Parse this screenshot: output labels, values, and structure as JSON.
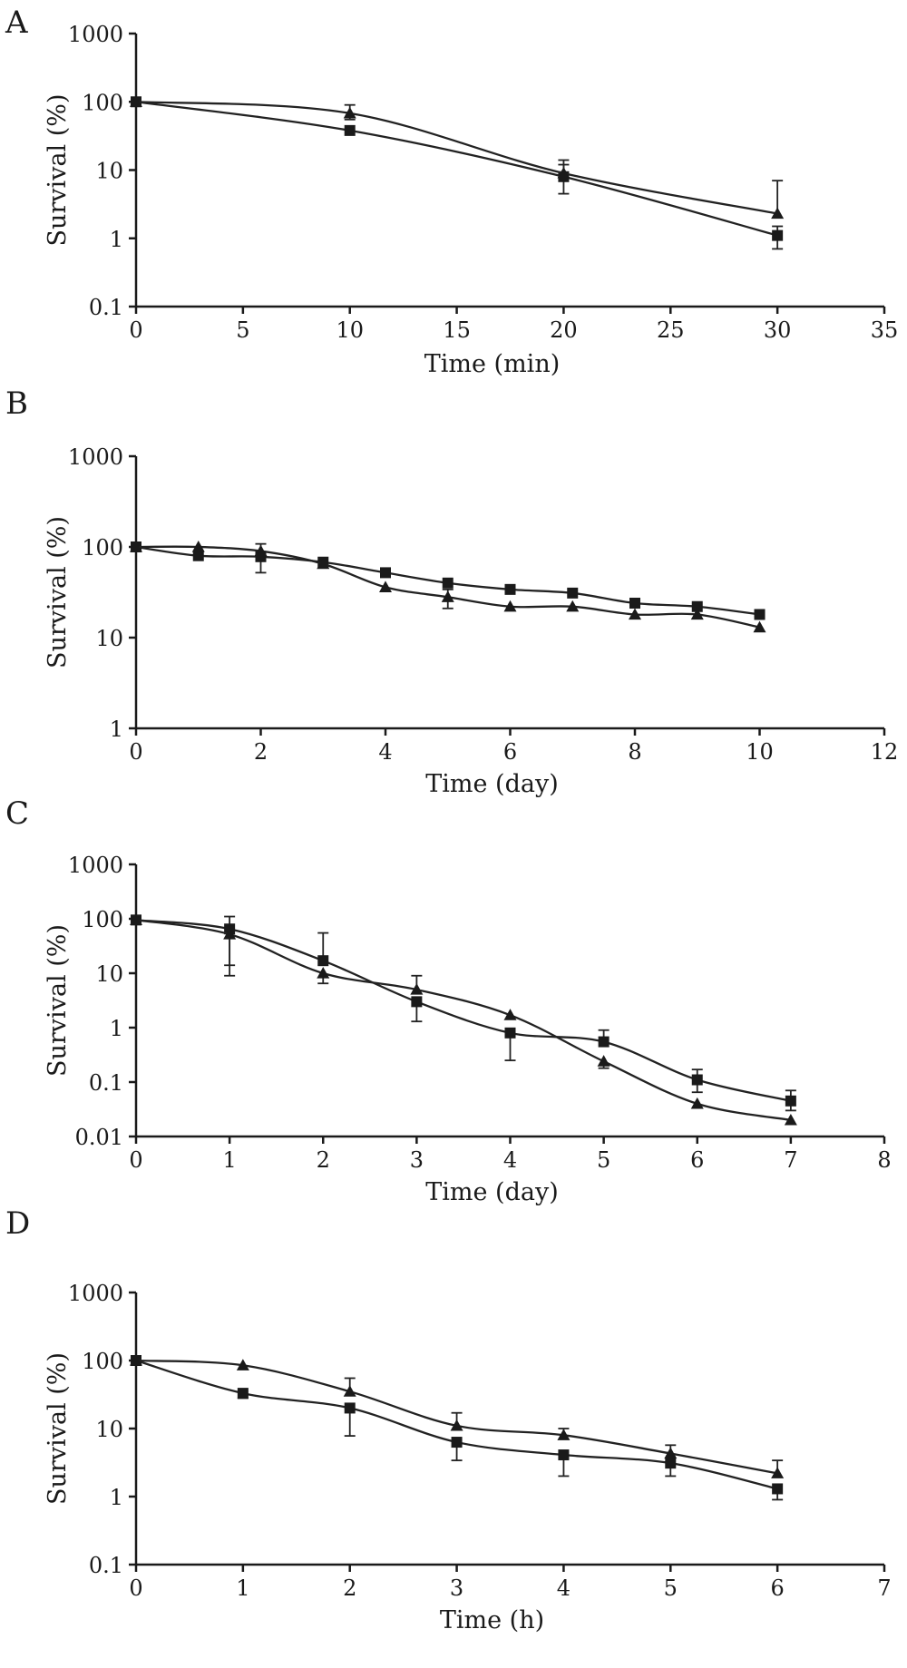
{
  "chart_data": [
    {
      "type": "line",
      "panel_label": "A",
      "title": "",
      "xlabel": "Time (min)",
      "ylabel": "Survival (%)",
      "y_scale": "log",
      "xlim": [
        0,
        35
      ],
      "ylim": [
        0.1,
        1000
      ],
      "x_ticks": [
        "0",
        "5",
        "10",
        "15",
        "20",
        "25",
        "30",
        "35"
      ],
      "y_ticks": [
        "0.1",
        "1",
        "10",
        "100",
        "1000"
      ],
      "grid": false,
      "legend": "none",
      "series": [
        {
          "marker": "square",
          "x": [
            0,
            10,
            20,
            30
          ],
          "values": [
            100,
            38,
            8,
            1.1
          ],
          "err_low": [
            null,
            null,
            4.5,
            0.7
          ],
          "err_high": [
            null,
            null,
            12,
            1.5
          ]
        },
        {
          "marker": "triangle",
          "x": [
            0,
            10,
            20,
            30
          ],
          "values": [
            100,
            68,
            9,
            2.3
          ],
          "err_low": [
            null,
            55,
            null,
            null
          ],
          "err_high": [
            null,
            90,
            14,
            7
          ]
        }
      ]
    },
    {
      "type": "line",
      "panel_label": "B",
      "title": "",
      "xlabel": "Time (day)",
      "ylabel": "Survival (%)",
      "y_scale": "log",
      "xlim": [
        0,
        12
      ],
      "ylim": [
        1,
        1000
      ],
      "x_ticks": [
        "0",
        "2",
        "4",
        "6",
        "8",
        "10",
        "12"
      ],
      "y_ticks": [
        "1",
        "10",
        "100",
        "1000"
      ],
      "grid": false,
      "legend": "none",
      "series": [
        {
          "marker": "square",
          "x": [
            0,
            1,
            2,
            3,
            4,
            5,
            6,
            7,
            8,
            9,
            10
          ],
          "values": [
            100,
            80,
            78,
            68,
            52,
            40,
            34,
            31,
            24,
            22,
            18
          ],
          "err_low": [
            null,
            null,
            52,
            null,
            null,
            null,
            null,
            null,
            null,
            null,
            null
          ],
          "err_high": [
            null,
            null,
            108,
            null,
            null,
            null,
            null,
            null,
            null,
            null,
            null
          ]
        },
        {
          "marker": "triangle",
          "x": [
            0,
            1,
            2,
            3,
            4,
            5,
            6,
            7,
            8,
            9,
            10
          ],
          "values": [
            100,
            100,
            90,
            65,
            36,
            28,
            22,
            22,
            18,
            18,
            13
          ],
          "err_low": [
            null,
            null,
            null,
            null,
            null,
            21,
            null,
            null,
            null,
            null,
            null
          ],
          "err_high": [
            null,
            null,
            null,
            null,
            null,
            34,
            null,
            null,
            null,
            null,
            null
          ]
        }
      ]
    },
    {
      "type": "line",
      "panel_label": "C",
      "title": "",
      "xlabel": "Time (day)",
      "ylabel": "Survival (%)",
      "y_scale": "log",
      "xlim": [
        0,
        8
      ],
      "ylim": [
        0.01,
        1000
      ],
      "x_ticks": [
        "0",
        "1",
        "2",
        "3",
        "4",
        "5",
        "6",
        "7",
        "8"
      ],
      "y_ticks": [
        "0.01",
        "0.1",
        "1",
        "10",
        "100",
        "1000"
      ],
      "grid": false,
      "legend": "none",
      "series": [
        {
          "marker": "square",
          "x": [
            0,
            1,
            2,
            3,
            4,
            5,
            6,
            7
          ],
          "values": [
            95,
            65,
            17,
            3,
            0.8,
            0.55,
            0.11,
            0.045
          ],
          "err_low": [
            null,
            14,
            null,
            1.3,
            0.25,
            null,
            0.065,
            0.03
          ],
          "err_high": [
            null,
            110,
            55,
            null,
            null,
            0.9,
            0.17,
            0.07
          ]
        },
        {
          "marker": "triangle",
          "x": [
            0,
            1,
            2,
            3,
            4,
            5,
            6,
            7
          ],
          "values": [
            95,
            52,
            10,
            5,
            1.7,
            0.24,
            0.04,
            0.02
          ],
          "err_low": [
            null,
            9,
            6.5,
            null,
            null,
            0.18,
            null,
            null
          ],
          "err_high": [
            null,
            null,
            null,
            9,
            null,
            null,
            null,
            null
          ]
        }
      ]
    },
    {
      "type": "line",
      "panel_label": "D",
      "title": "",
      "xlabel": "Time (h)",
      "ylabel": "Survival (%)",
      "y_scale": "log",
      "xlim": [
        0,
        7
      ],
      "ylim": [
        0.1,
        1000
      ],
      "x_ticks": [
        "0",
        "1",
        "2",
        "3",
        "4",
        "5",
        "6",
        "7"
      ],
      "y_ticks": [
        "0.1",
        "1",
        "10",
        "100",
        "1000"
      ],
      "grid": false,
      "legend": "none",
      "series": [
        {
          "marker": "square",
          "x": [
            0,
            1,
            2,
            3,
            4,
            5,
            6
          ],
          "values": [
            100,
            33,
            20,
            6.3,
            4.1,
            3.1,
            1.3
          ],
          "err_low": [
            null,
            28,
            7.8,
            3.4,
            2,
            2,
            0.9
          ],
          "err_high": [
            null,
            null,
            null,
            null,
            null,
            null,
            null
          ]
        },
        {
          "marker": "triangle",
          "x": [
            0,
            1,
            2,
            3,
            4,
            5,
            6
          ],
          "values": [
            100,
            85,
            35,
            11,
            8,
            4.3,
            2.2
          ],
          "err_low": [
            null,
            null,
            null,
            null,
            null,
            null,
            null
          ],
          "err_high": [
            null,
            null,
            55,
            17,
            10,
            5.7,
            3.4
          ]
        }
      ]
    }
  ]
}
